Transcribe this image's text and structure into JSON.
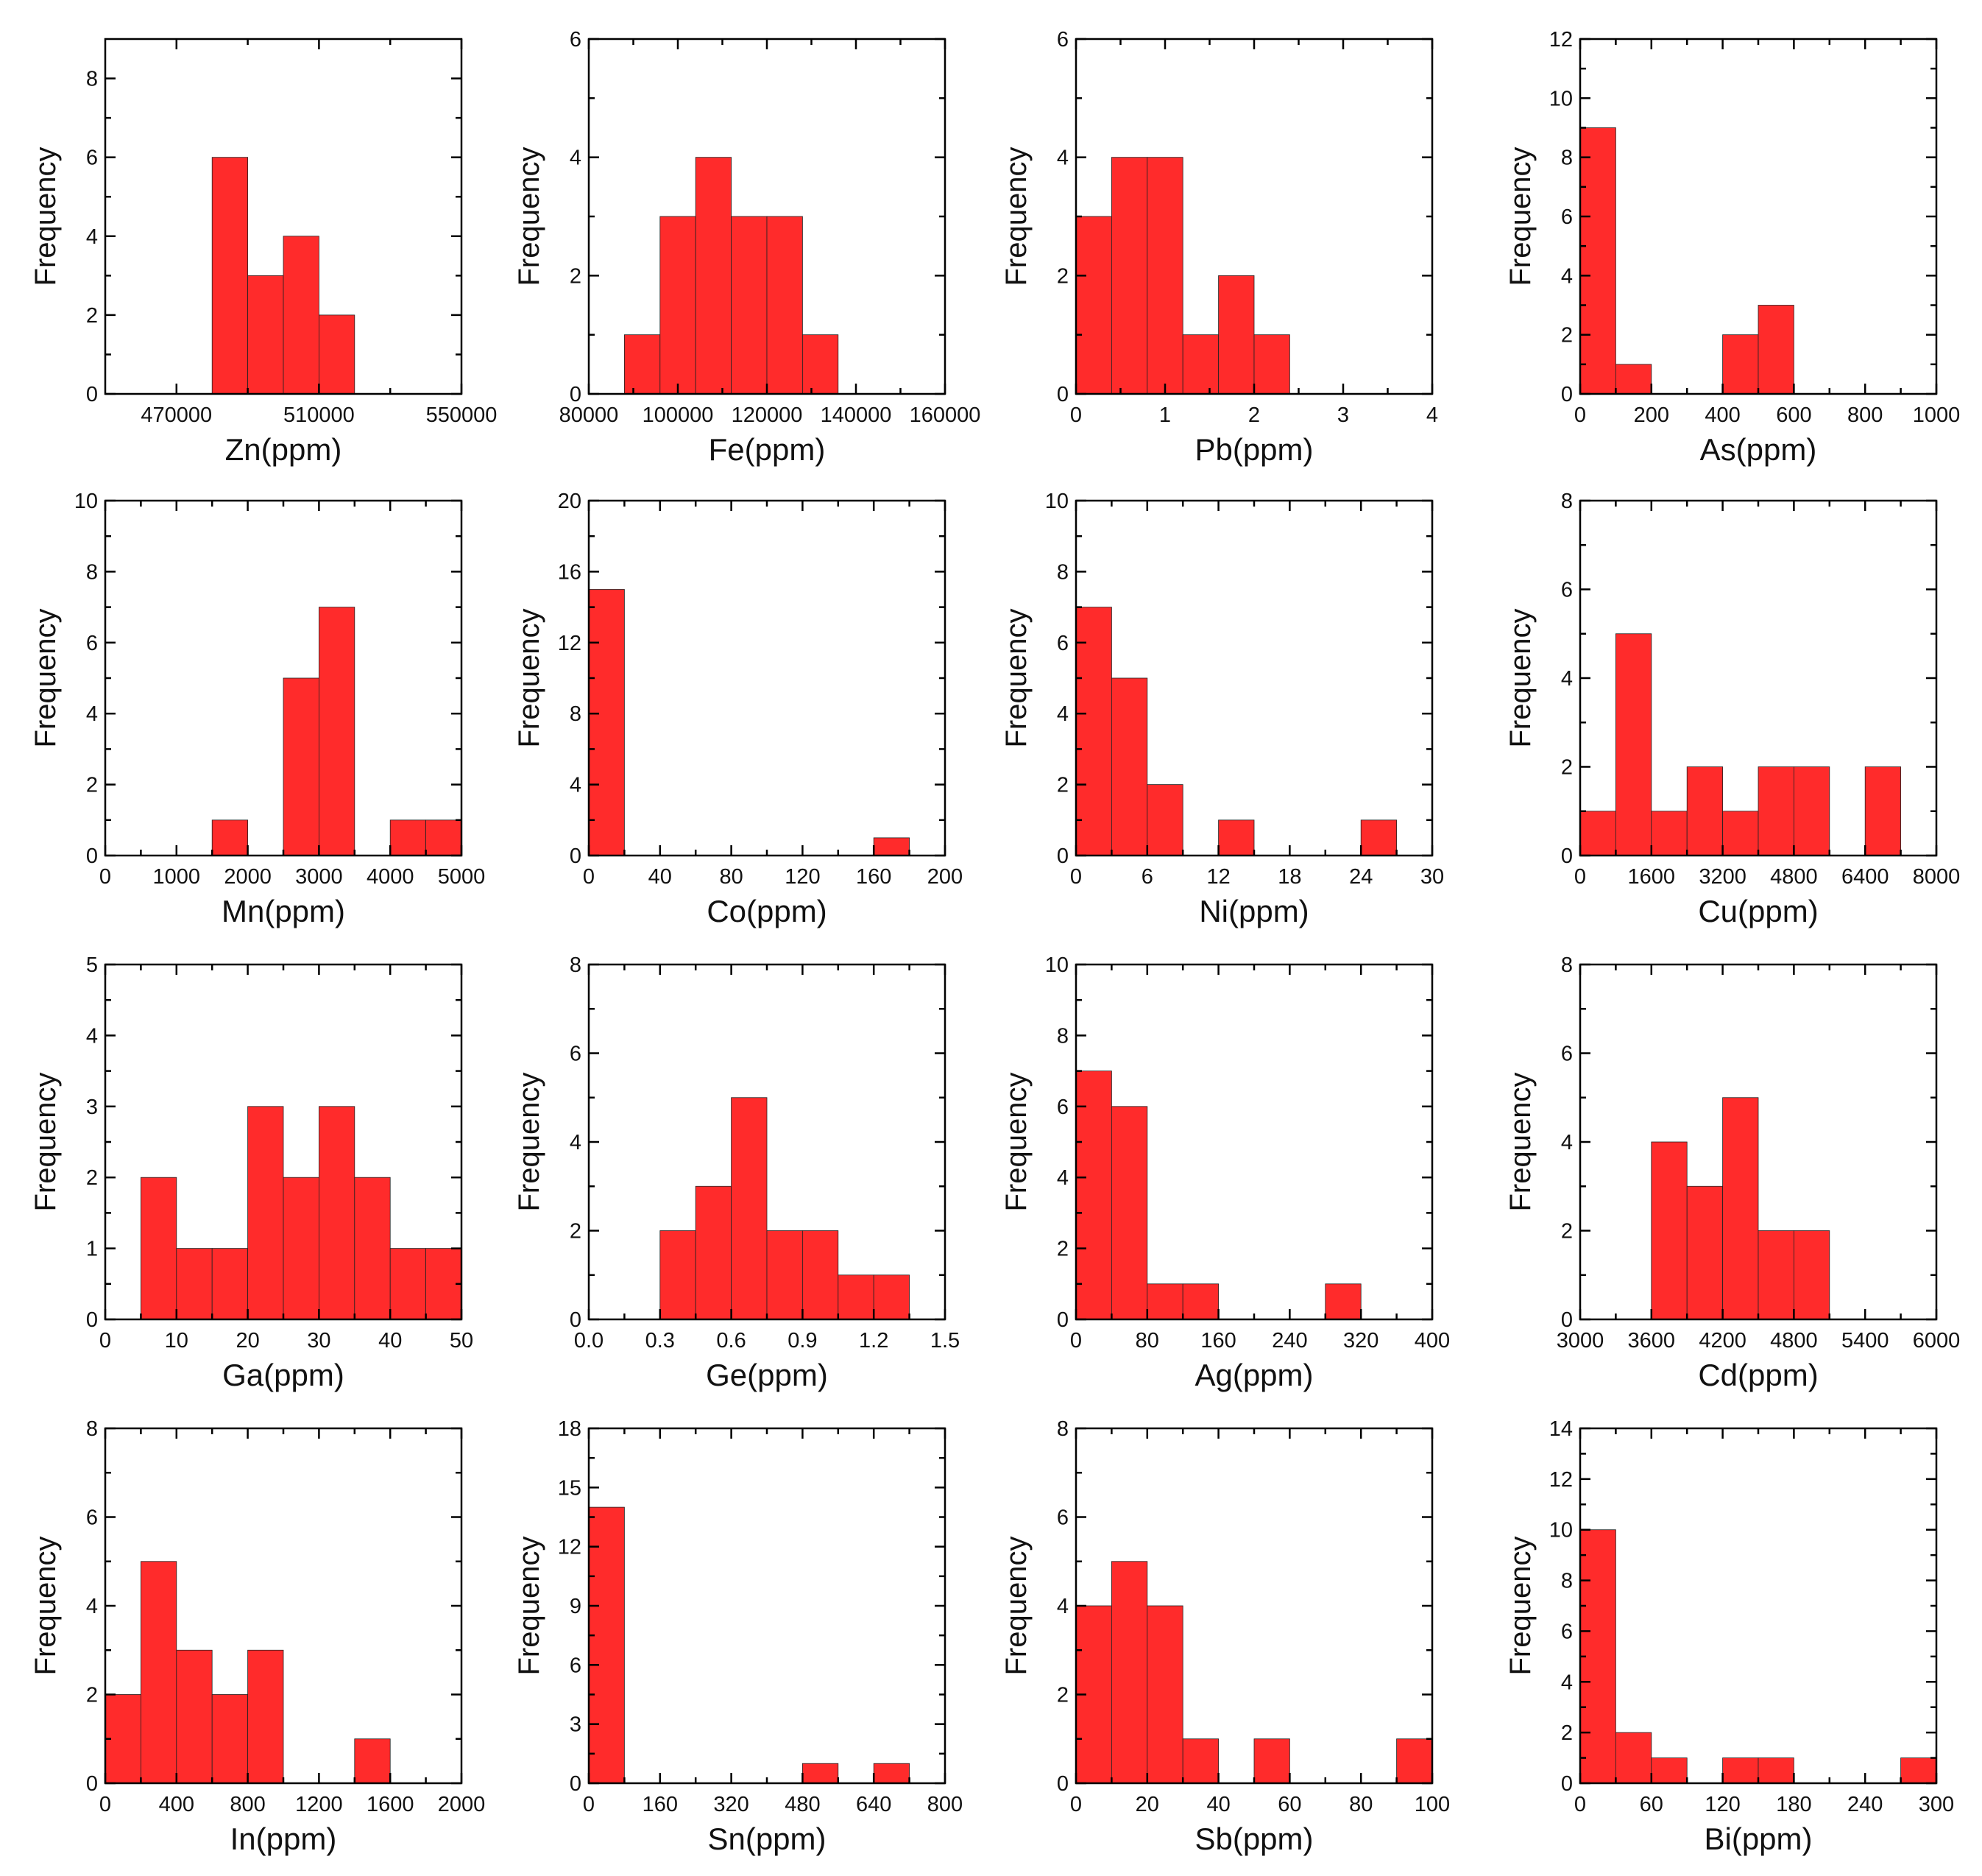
{
  "chart_data": [
    {
      "type": "bar",
      "xlabel": "Zn(ppm)",
      "ylabel": "Frequency",
      "xlim": [
        450000,
        550000
      ],
      "ylim": [
        0,
        9
      ],
      "xticks": [
        470000,
        510000,
        550000
      ],
      "yticks": [
        0,
        2,
        4,
        6,
        8
      ],
      "bins": [
        [
          480000,
          490000,
          6
        ],
        [
          490000,
          500000,
          3
        ],
        [
          500000,
          510000,
          4
        ],
        [
          510000,
          520000,
          2
        ]
      ]
    },
    {
      "type": "bar",
      "xlabel": "Fe(ppm)",
      "ylabel": "Frequency",
      "xlim": [
        80000,
        160000
      ],
      "ylim": [
        0,
        6
      ],
      "xticks": [
        80000,
        100000,
        120000,
        140000,
        160000
      ],
      "yticks": [
        0,
        2,
        4,
        6
      ],
      "bins": [
        [
          88000,
          96000,
          1
        ],
        [
          96000,
          104000,
          3
        ],
        [
          104000,
          112000,
          4
        ],
        [
          112000,
          120000,
          3
        ],
        [
          120000,
          128000,
          3
        ],
        [
          128000,
          136000,
          1
        ]
      ]
    },
    {
      "type": "bar",
      "xlabel": "Pb(ppm)",
      "ylabel": "Frequency",
      "xlim": [
        0,
        4
      ],
      "ylim": [
        0,
        6
      ],
      "xticks": [
        0,
        1,
        2,
        3,
        4
      ],
      "yticks": [
        0,
        2,
        4,
        6
      ],
      "bins": [
        [
          0,
          0.4,
          3
        ],
        [
          0.4,
          0.8,
          4
        ],
        [
          0.8,
          1.2,
          4
        ],
        [
          1.2,
          1.6,
          1
        ],
        [
          1.6,
          2.0,
          2
        ],
        [
          2.0,
          2.4,
          1
        ]
      ]
    },
    {
      "type": "bar",
      "xlabel": "As(ppm)",
      "ylabel": "Frequency",
      "xlim": [
        0,
        1000
      ],
      "ylim": [
        0,
        12
      ],
      "xticks": [
        0,
        200,
        400,
        600,
        800,
        1000
      ],
      "yticks": [
        0,
        2,
        4,
        6,
        8,
        10,
        12
      ],
      "bins": [
        [
          0,
          100,
          9
        ],
        [
          100,
          200,
          1
        ],
        [
          400,
          500,
          2
        ],
        [
          500,
          600,
          3
        ]
      ]
    },
    {
      "type": "bar",
      "xlabel": "Mn(ppm)",
      "ylabel": "Frequency",
      "xlim": [
        0,
        5000
      ],
      "ylim": [
        0,
        10
      ],
      "xticks": [
        0,
        1000,
        2000,
        3000,
        4000,
        5000
      ],
      "yticks": [
        0,
        2,
        4,
        6,
        8,
        10
      ],
      "bins": [
        [
          1500,
          2000,
          1
        ],
        [
          2500,
          3000,
          5
        ],
        [
          3000,
          3500,
          7
        ],
        [
          4000,
          4500,
          1
        ],
        [
          4500,
          5000,
          1
        ]
      ]
    },
    {
      "type": "bar",
      "xlabel": "Co(ppm)",
      "ylabel": "Frequency",
      "xlim": [
        0,
        200
      ],
      "ylim": [
        0,
        20
      ],
      "xticks": [
        0,
        40,
        80,
        120,
        160,
        200
      ],
      "yticks": [
        0,
        4,
        8,
        12,
        16,
        20
      ],
      "bins": [
        [
          0,
          20,
          15
        ],
        [
          160,
          180,
          1
        ]
      ]
    },
    {
      "type": "bar",
      "xlabel": "Ni(ppm)",
      "ylabel": "Frequency",
      "xlim": [
        0,
        30
      ],
      "ylim": [
        0,
        10
      ],
      "xticks": [
        0,
        6,
        12,
        18,
        24,
        30
      ],
      "yticks": [
        0,
        2,
        4,
        6,
        8,
        10
      ],
      "bins": [
        [
          0,
          3,
          7
        ],
        [
          3,
          6,
          5
        ],
        [
          6,
          9,
          2
        ],
        [
          12,
          15,
          1
        ],
        [
          24,
          27,
          1
        ]
      ]
    },
    {
      "type": "bar",
      "xlabel": "Cu(ppm)",
      "ylabel": "Frequency",
      "xlim": [
        0,
        8000
      ],
      "ylim": [
        0,
        8
      ],
      "xticks": [
        0,
        1600,
        3200,
        4800,
        6400,
        8000
      ],
      "yticks": [
        0,
        2,
        4,
        6,
        8
      ],
      "bins": [
        [
          0,
          800,
          1
        ],
        [
          800,
          1600,
          5
        ],
        [
          1600,
          2400,
          1
        ],
        [
          2400,
          3200,
          2
        ],
        [
          3200,
          4000,
          1
        ],
        [
          4000,
          4800,
          2
        ],
        [
          4800,
          5600,
          2
        ],
        [
          6400,
          7200,
          2
        ]
      ]
    },
    {
      "type": "bar",
      "xlabel": "Ga(ppm)",
      "ylabel": "Frequency",
      "xlim": [
        0,
        50
      ],
      "ylim": [
        0,
        5
      ],
      "xticks": [
        0,
        10,
        20,
        30,
        40,
        50
      ],
      "yticks": [
        0,
        1,
        2,
        3,
        4,
        5
      ],
      "bins": [
        [
          5,
          10,
          2
        ],
        [
          10,
          15,
          1
        ],
        [
          15,
          20,
          1
        ],
        [
          20,
          25,
          3
        ],
        [
          25,
          30,
          2
        ],
        [
          30,
          35,
          3
        ],
        [
          35,
          40,
          2
        ],
        [
          40,
          45,
          1
        ],
        [
          45,
          50,
          1
        ]
      ]
    },
    {
      "type": "bar",
      "xlabel": "Ge(ppm)",
      "ylabel": "Frequency",
      "xlim": [
        0,
        1.5
      ],
      "ylim": [
        0,
        8
      ],
      "xticks": [
        0.0,
        0.3,
        0.6,
        0.9,
        1.2,
        1.5
      ],
      "xticklabels": [
        "0.0",
        "0.3",
        "0.6",
        "0.9",
        "1.2",
        "1.5"
      ],
      "yticks": [
        0,
        2,
        4,
        6,
        8
      ],
      "bins": [
        [
          0.3,
          0.45,
          2
        ],
        [
          0.45,
          0.6,
          3
        ],
        [
          0.6,
          0.75,
          5
        ],
        [
          0.75,
          0.9,
          2
        ],
        [
          0.9,
          1.05,
          2
        ],
        [
          1.05,
          1.2,
          1
        ],
        [
          1.2,
          1.35,
          1
        ]
      ]
    },
    {
      "type": "bar",
      "xlabel": "Ag(ppm)",
      "ylabel": "Frequency",
      "xlim": [
        0,
        400
      ],
      "ylim": [
        0,
        10
      ],
      "xticks": [
        0,
        80,
        160,
        240,
        320,
        400
      ],
      "yticks": [
        0,
        2,
        4,
        6,
        8,
        10
      ],
      "bins": [
        [
          0,
          40,
          7
        ],
        [
          40,
          80,
          6
        ],
        [
          80,
          120,
          1
        ],
        [
          120,
          160,
          1
        ],
        [
          280,
          320,
          1
        ]
      ]
    },
    {
      "type": "bar",
      "xlabel": "Cd(ppm)",
      "ylabel": "Frequency",
      "xlim": [
        3000,
        6000
      ],
      "ylim": [
        0,
        8
      ],
      "xticks": [
        3000,
        3600,
        4200,
        4800,
        5400,
        6000
      ],
      "yticks": [
        0,
        2,
        4,
        6,
        8
      ],
      "bins": [
        [
          3600,
          3900,
          4
        ],
        [
          3900,
          4200,
          3
        ],
        [
          4200,
          4500,
          5
        ],
        [
          4500,
          4800,
          2
        ],
        [
          4800,
          5100,
          2
        ]
      ]
    },
    {
      "type": "bar",
      "xlabel": "In(ppm)",
      "ylabel": "Frequency",
      "xlim": [
        0,
        2000
      ],
      "ylim": [
        0,
        8
      ],
      "xticks": [
        0,
        400,
        800,
        1200,
        1600,
        2000
      ],
      "yticks": [
        0,
        2,
        4,
        6,
        8
      ],
      "bins": [
        [
          0,
          200,
          2
        ],
        [
          200,
          400,
          5
        ],
        [
          400,
          600,
          3
        ],
        [
          600,
          800,
          2
        ],
        [
          800,
          1000,
          3
        ],
        [
          1400,
          1600,
          1
        ]
      ]
    },
    {
      "type": "bar",
      "xlabel": "Sn(ppm)",
      "ylabel": "Frequency",
      "xlim": [
        0,
        800
      ],
      "ylim": [
        0,
        18
      ],
      "xticks": [
        0,
        160,
        320,
        480,
        640,
        800
      ],
      "yticks": [
        0,
        3,
        6,
        9,
        12,
        15,
        18
      ],
      "bins": [
        [
          0,
          80,
          14
        ],
        [
          480,
          560,
          1
        ],
        [
          640,
          720,
          1
        ]
      ]
    },
    {
      "type": "bar",
      "xlabel": "Sb(ppm)",
      "ylabel": "Frequency",
      "xlim": [
        0,
        100
      ],
      "ylim": [
        0,
        8
      ],
      "xticks": [
        0,
        20,
        40,
        60,
        80,
        100
      ],
      "yticks": [
        0,
        2,
        4,
        6,
        8
      ],
      "bins": [
        [
          0,
          10,
          4
        ],
        [
          10,
          20,
          5
        ],
        [
          20,
          30,
          4
        ],
        [
          30,
          40,
          1
        ],
        [
          50,
          60,
          1
        ],
        [
          90,
          100,
          1
        ]
      ]
    },
    {
      "type": "bar",
      "xlabel": "Bi(ppm)",
      "ylabel": "Frequency",
      "xlim": [
        0,
        300
      ],
      "ylim": [
        0,
        14
      ],
      "xticks": [
        0,
        60,
        120,
        180,
        240,
        300
      ],
      "yticks": [
        0,
        2,
        4,
        6,
        8,
        10,
        12,
        14
      ],
      "bins": [
        [
          0,
          30,
          10
        ],
        [
          30,
          60,
          2
        ],
        [
          60,
          90,
          1
        ],
        [
          120,
          150,
          1
        ],
        [
          150,
          180,
          1
        ],
        [
          270,
          300,
          1
        ]
      ]
    }
  ],
  "style": {
    "bar_color": "#ff2b2b",
    "axis_color": "#000000"
  }
}
